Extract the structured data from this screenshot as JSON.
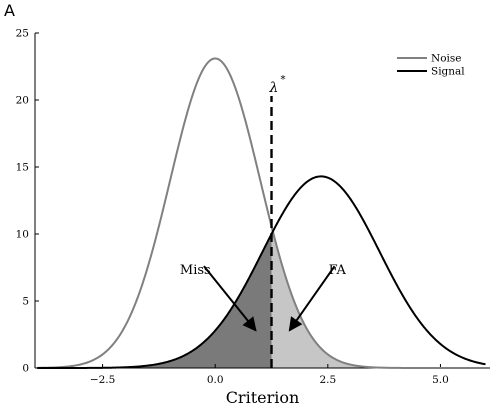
{
  "panel_label": "A",
  "chart_data": {
    "type": "line",
    "title": "",
    "xlabel": "Criterion",
    "ylabel": "",
    "xlim": [
      -4.0,
      6.1
    ],
    "ylim": [
      0,
      25
    ],
    "grid": false,
    "legend_position": "top-right",
    "x_ticks": [
      -2.5,
      0.0,
      2.5,
      5.0
    ],
    "x_tick_labels": [
      "−2.5",
      "0.0",
      "2.5",
      "5.0"
    ],
    "y_ticks": [
      0,
      5,
      10,
      15,
      20,
      25
    ],
    "y_tick_labels": [
      "0",
      "5",
      "10",
      "15",
      "20",
      "25"
    ],
    "series": [
      {
        "name": "Noise",
        "shape": "gaussian",
        "mean": 0.0,
        "sd": 1.0,
        "peak": 23.1,
        "color": "#808080"
      },
      {
        "name": "Signal",
        "shape": "gaussian",
        "mean": 2.35,
        "sd": 1.3,
        "peak": 14.3,
        "color": "#000000"
      }
    ],
    "criterion": {
      "x": 1.25,
      "label": "λ",
      "superscript": "*"
    },
    "shaded_regions": [
      {
        "name": "Miss",
        "color": "#7a7a7a",
        "arrow_from": [
          -0.25,
          7.6
        ],
        "arrow_to": [
          0.9,
          2.8
        ]
      },
      {
        "name": "FA",
        "color": "#c6c6c6",
        "arrow_from": [
          2.65,
          7.6
        ],
        "arrow_to": [
          1.65,
          2.8
        ]
      }
    ]
  }
}
